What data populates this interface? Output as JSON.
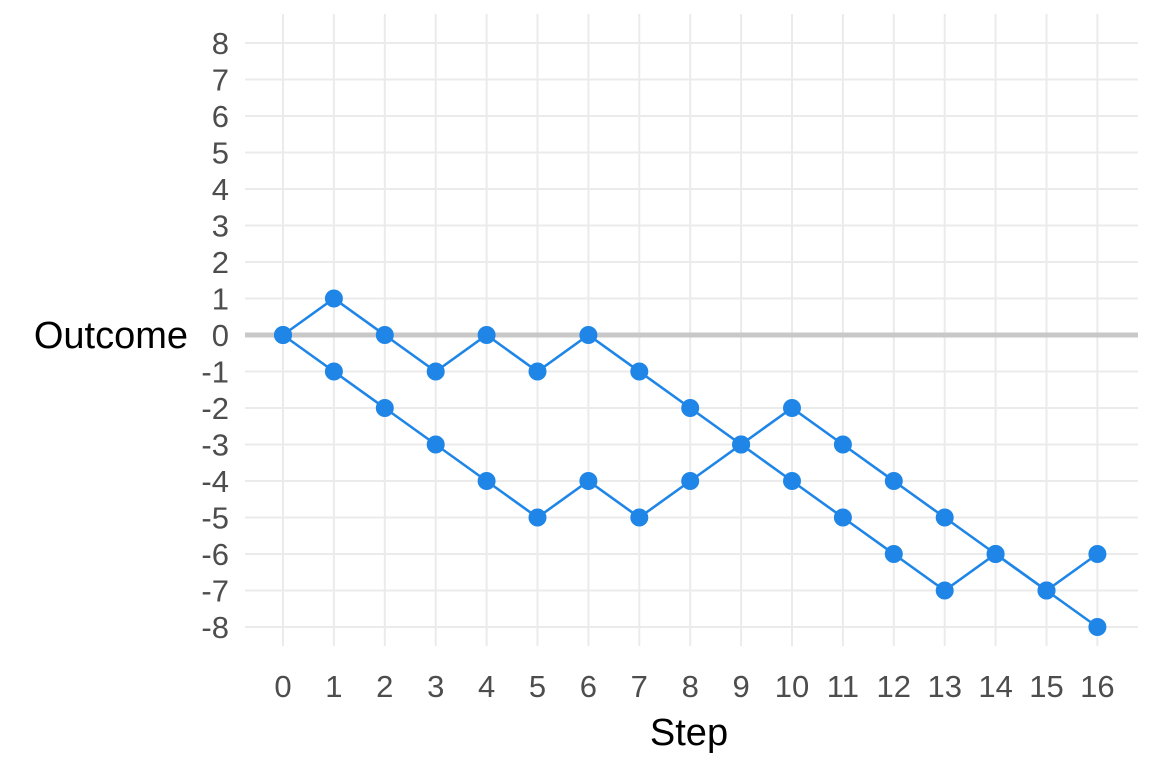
{
  "chart_data": {
    "type": "line",
    "title": "",
    "xlabel": "Step",
    "ylabel": "Outcome",
    "xlim": [
      0,
      16
    ],
    "ylim": [
      -8,
      8
    ],
    "x_ticks": [
      "0",
      "1",
      "2",
      "3",
      "4",
      "5",
      "6",
      "7",
      "8",
      "9",
      "10",
      "11",
      "12",
      "13",
      "14",
      "15",
      "16"
    ],
    "y_ticks": [
      "8",
      "7",
      "6",
      "5",
      "4",
      "3",
      "2",
      "1",
      "0",
      "-1",
      "-2",
      "-3",
      "-4",
      "-5",
      "-6",
      "-7",
      "-8"
    ],
    "grid": true,
    "legend": "none",
    "reference_line": 0,
    "marker": "circle",
    "series": [
      {
        "color": "#1f86e8",
        "x": [
          0,
          1,
          2,
          3,
          4,
          5,
          6,
          7,
          8,
          9,
          10,
          11,
          12,
          13,
          14,
          15,
          16
        ],
        "y": [
          0,
          1,
          0,
          -1,
          0,
          -1,
          0,
          -1,
          -2,
          -3,
          -2,
          -3,
          -4,
          -5,
          -6,
          -7,
          -6
        ]
      },
      {
        "color": "#1f86e8",
        "x": [
          0,
          1,
          2,
          3,
          4,
          5,
          6,
          7,
          8,
          9,
          10,
          11,
          12,
          13,
          14,
          15,
          16
        ],
        "y": [
          0,
          -1,
          -2,
          -3,
          -4,
          -5,
          -4,
          -5,
          -4,
          -3,
          -4,
          -5,
          -6,
          -7,
          -6,
          -7,
          -8
        ]
      }
    ]
  }
}
